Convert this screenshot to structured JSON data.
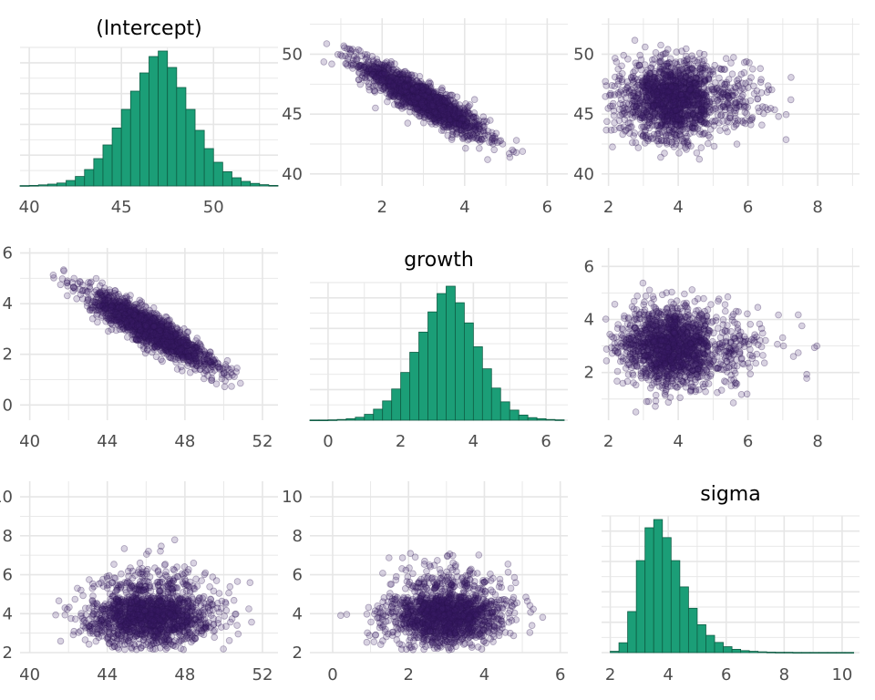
{
  "chart_data": {
    "type": "pairs",
    "variables": [
      "(Intercept)",
      "growth",
      "sigma"
    ],
    "colors": {
      "histogram_fill": "#1b9e77",
      "histogram_edge": "#0f5e45",
      "point_fill": "#3b1f6b",
      "point_edge": "#2a1450",
      "grid": "#e6e6e6",
      "tick_text": "#4d4d4d"
    },
    "grid": true,
    "panels": [
      {
        "row": 0,
        "col": 0,
        "type": "histogram",
        "variable": "(Intercept)",
        "title": "(Intercept)",
        "xlim": [
          39.5,
          53.5
        ],
        "xticks": [
          40,
          45,
          50
        ],
        "bin_width": 0.5,
        "bins_start": 39.5,
        "counts": [
          2,
          3,
          6,
          10,
          16,
          30,
          52,
          90,
          150,
          225,
          318,
          420,
          520,
          620,
          710,
          740,
          650,
          540,
          420,
          305,
          205,
          130,
          78,
          45,
          25,
          14,
          7,
          3
        ]
      },
      {
        "row": 0,
        "col": 1,
        "type": "scatter",
        "x_var": "growth",
        "y_var": "(Intercept)",
        "xlim": [
          0.25,
          6.5
        ],
        "ylim": [
          39,
          53
        ],
        "xticks": [
          2,
          4,
          6
        ],
        "yticks": [
          40,
          45,
          50
        ],
        "n_points": 1700,
        "x_mean": 3.0,
        "x_sd": 0.75,
        "y_mean": 46.2,
        "y_sd": 1.6,
        "correlation": -0.9
      },
      {
        "row": 0,
        "col": 2,
        "type": "scatter",
        "x_var": "sigma",
        "y_var": "(Intercept)",
        "xlim": [
          1.8,
          9.2
        ],
        "ylim": [
          39,
          53
        ],
        "xticks": [
          2,
          4,
          6,
          8
        ],
        "yticks": [
          40,
          45,
          50
        ],
        "n_points": 1700,
        "x_mean": 3.9,
        "x_sd": 0.75,
        "y_mean": 46.2,
        "y_sd": 1.6,
        "correlation": 0.0
      },
      {
        "row": 1,
        "col": 0,
        "type": "scatter",
        "x_var": "(Intercept)",
        "y_var": "growth",
        "xlim": [
          39.5,
          52.8
        ],
        "ylim": [
          -0.6,
          6.2
        ],
        "xticks": [
          40,
          44,
          48,
          52
        ],
        "yticks": [
          0,
          2,
          4,
          6
        ],
        "n_points": 1700,
        "x_mean": 46.2,
        "x_sd": 1.6,
        "y_mean": 3.0,
        "y_sd": 0.75,
        "correlation": -0.9
      },
      {
        "row": 1,
        "col": 1,
        "type": "histogram",
        "variable": "growth",
        "title": "growth",
        "xlim": [
          -0.5,
          6.6
        ],
        "xticks": [
          0,
          2,
          4,
          6
        ],
        "bin_width": 0.25,
        "bins_start": -0.5,
        "counts": [
          1,
          1,
          2,
          4,
          8,
          16,
          32,
          60,
          105,
          170,
          260,
          370,
          480,
          590,
          690,
          730,
          640,
          530,
          400,
          280,
          175,
          100,
          55,
          28,
          14,
          8,
          4,
          2
        ]
      },
      {
        "row": 1,
        "col": 2,
        "type": "scatter",
        "x_var": "sigma",
        "y_var": "growth",
        "xlim": [
          1.8,
          9.2
        ],
        "ylim": [
          0.2,
          6.7
        ],
        "xticks": [
          2,
          4,
          6,
          8
        ],
        "yticks": [
          2,
          4,
          6
        ],
        "n_points": 1700,
        "x_mean": 3.9,
        "x_sd": 0.75,
        "y_mean": 3.0,
        "y_sd": 0.75,
        "correlation": 0.0
      },
      {
        "row": 2,
        "col": 0,
        "type": "scatter",
        "x_var": "(Intercept)",
        "y_var": "sigma",
        "xlim": [
          39.5,
          52.8
        ],
        "ylim": [
          2,
          10.8
        ],
        "xticks": [
          40,
          44,
          48,
          52
        ],
        "yticks": [
          2,
          4,
          6,
          8,
          10
        ],
        "n_points": 1700,
        "x_mean": 46.2,
        "x_sd": 1.6,
        "y_mean": 3.9,
        "y_sd": 0.75,
        "correlation": 0.0
      },
      {
        "row": 2,
        "col": 1,
        "type": "scatter",
        "x_var": "growth",
        "y_var": "sigma",
        "xlim": [
          -0.6,
          6.2
        ],
        "ylim": [
          2,
          10.8
        ],
        "xticks": [
          0,
          2,
          4,
          6
        ],
        "yticks": [
          2,
          4,
          6,
          8,
          10
        ],
        "n_points": 1700,
        "x_mean": 3.0,
        "x_sd": 0.75,
        "y_mean": 3.9,
        "y_sd": 0.75,
        "correlation": 0.0
      },
      {
        "row": 2,
        "col": 2,
        "type": "histogram",
        "variable": "sigma",
        "title": "sigma",
        "xlim": [
          1.7,
          10.6
        ],
        "xticks": [
          2,
          4,
          6,
          8,
          10
        ],
        "bin_width": 0.3,
        "bins_start": 2.0,
        "counts": [
          8,
          60,
          250,
          560,
          760,
          810,
          700,
          560,
          400,
          270,
          170,
          105,
          62,
          36,
          20,
          12,
          8,
          5,
          3,
          2,
          2,
          1,
          1,
          1,
          1,
          1,
          1,
          1
        ]
      }
    ]
  }
}
